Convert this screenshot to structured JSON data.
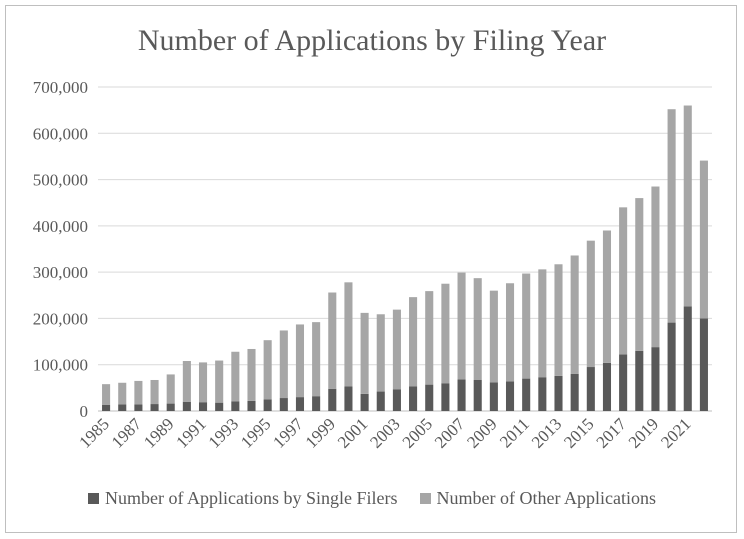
{
  "chart_data": {
    "type": "bar",
    "stacked": true,
    "title": "Number of Applications by Filing Year",
    "xlabel": "",
    "ylabel": "",
    "ylim": [
      0,
      700000
    ],
    "yticks": [
      0,
      100000,
      200000,
      300000,
      400000,
      500000,
      600000,
      700000
    ],
    "ytick_labels": [
      "0",
      "100,000",
      "200,000",
      "300,000",
      "400,000",
      "500,000",
      "600,000",
      "700,000"
    ],
    "grid": true,
    "legend_position": "bottom",
    "categories": [
      "1985",
      "1986",
      "1987",
      "1988",
      "1989",
      "1990",
      "1991",
      "1992",
      "1993",
      "1994",
      "1995",
      "1996",
      "1997",
      "1998",
      "1999",
      "2000",
      "2001",
      "2002",
      "2003",
      "2004",
      "2005",
      "2006",
      "2007",
      "2008",
      "2009",
      "2010",
      "2011",
      "2012",
      "2013",
      "2014",
      "2015",
      "2016",
      "2017",
      "2018",
      "2019",
      "2020",
      "2021",
      "2022"
    ],
    "xtick_labels_shown": [
      "1985",
      "1987",
      "1989",
      "1991",
      "1993",
      "1995",
      "1997",
      "1999",
      "2001",
      "2003",
      "2005",
      "2007",
      "2009",
      "2011",
      "2013",
      "2015",
      "2017",
      "2019",
      "2021"
    ],
    "series": [
      {
        "name": "Number of Applications by Single Filers",
        "color": "#595959",
        "values": [
          13000,
          14000,
          14000,
          15000,
          16000,
          20000,
          19000,
          18000,
          21000,
          22000,
          25000,
          28000,
          30000,
          32000,
          48000,
          53000,
          37000,
          42000,
          47000,
          53000,
          57000,
          60000,
          68000,
          67000,
          62000,
          64000,
          70000,
          73000,
          76000,
          80000,
          95000,
          104000,
          122000,
          130000,
          138000,
          191000,
          226000,
          200000
        ]
      },
      {
        "name": "Number of Other Applications",
        "color": "#a6a6a6",
        "values": [
          45000,
          47000,
          51000,
          52000,
          63000,
          88000,
          86000,
          91000,
          107000,
          112000,
          128000,
          146000,
          157000,
          160000,
          208000,
          225000,
          175000,
          167000,
          172000,
          193000,
          202000,
          215000,
          231000,
          220000,
          198000,
          212000,
          227000,
          233000,
          241000,
          256000,
          273000,
          286000,
          318000,
          330000,
          347000,
          461000,
          434000,
          341000
        ]
      }
    ]
  }
}
